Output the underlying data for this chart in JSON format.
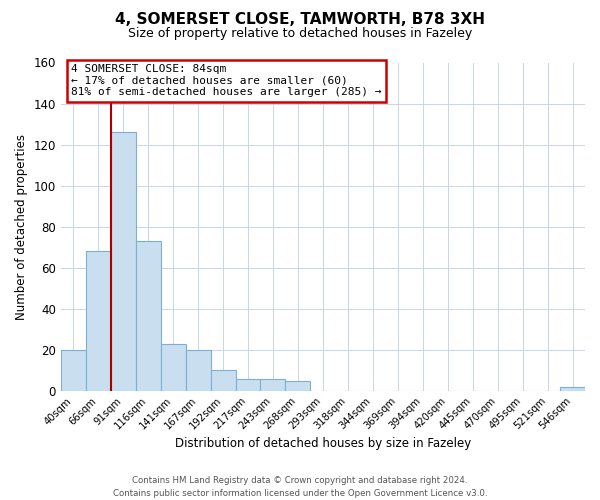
{
  "title_line1": "4, SOMERSET CLOSE, TAMWORTH, B78 3XH",
  "title_line2": "Size of property relative to detached houses in Fazeley",
  "xlabel": "Distribution of detached houses by size in Fazeley",
  "ylabel": "Number of detached properties",
  "bin_labels": [
    "40sqm",
    "66sqm",
    "91sqm",
    "116sqm",
    "141sqm",
    "167sqm",
    "192sqm",
    "217sqm",
    "243sqm",
    "268sqm",
    "293sqm",
    "318sqm",
    "344sqm",
    "369sqm",
    "394sqm",
    "420sqm",
    "445sqm",
    "470sqm",
    "495sqm",
    "521sqm",
    "546sqm"
  ],
  "bar_values": [
    20,
    68,
    126,
    73,
    23,
    20,
    10,
    6,
    6,
    5,
    0,
    0,
    0,
    0,
    0,
    0,
    0,
    0,
    0,
    0,
    2
  ],
  "bar_color": "#c9dff0",
  "bar_edge_color": "#7bafd4",
  "vline_x_index": 2,
  "vline_color": "#aa0000",
  "ylim": [
    0,
    160
  ],
  "yticks": [
    0,
    20,
    40,
    60,
    80,
    100,
    120,
    140,
    160
  ],
  "ann_text_line1": "4 SOMERSET CLOSE: 84sqm",
  "ann_text_line2": "← 17% of detached houses are smaller (60)",
  "ann_text_line3": "81% of semi-detached houses are larger (285) →",
  "footer_line1": "Contains HM Land Registry data © Crown copyright and database right 2024.",
  "footer_line2": "Contains public sector information licensed under the Open Government Licence v3.0.",
  "background_color": "#ffffff",
  "grid_color": "#c8d4e8",
  "grid_alpha": 1.0,
  "ann_box_edge_color": "#cc0000",
  "ann_box_face_color": "#ffffff"
}
